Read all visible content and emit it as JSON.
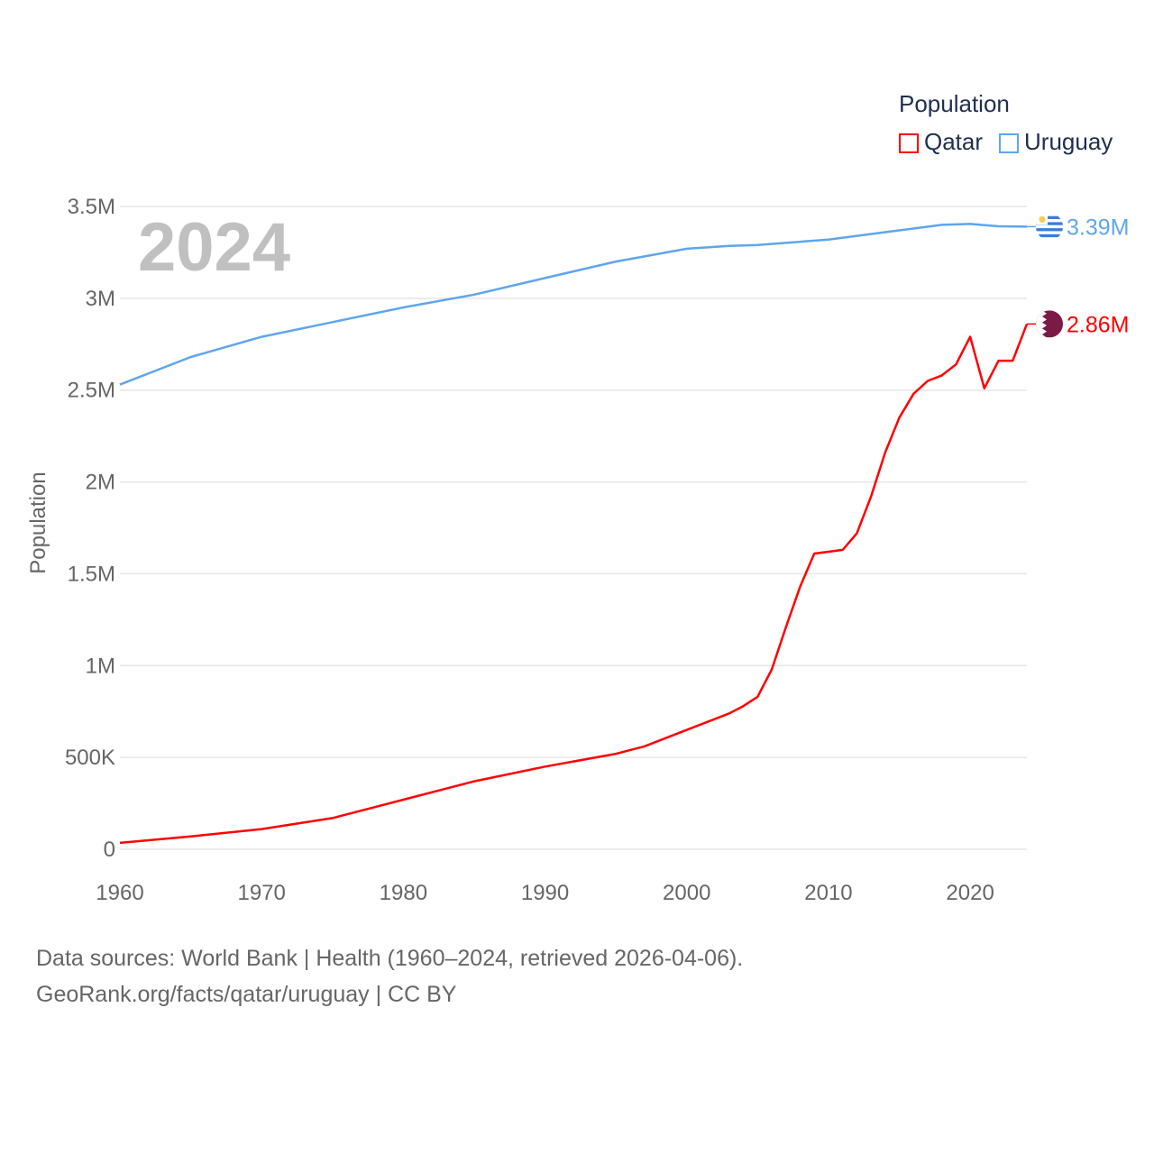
{
  "chart_data": {
    "type": "line",
    "title": "Population",
    "year_label": "2024",
    "xlabel": "",
    "ylabel": "Population",
    "xlim": [
      1960,
      2024
    ],
    "ylim": [
      0,
      3500000
    ],
    "x_ticks": [
      "1960",
      "1970",
      "1980",
      "1990",
      "2000",
      "2010",
      "2020"
    ],
    "y_ticks": [
      {
        "v": 0,
        "label": "0"
      },
      {
        "v": 500000,
        "label": "500K"
      },
      {
        "v": 1000000,
        "label": "1M"
      },
      {
        "v": 1500000,
        "label": "1.5M"
      },
      {
        "v": 2000000,
        "label": "2M"
      },
      {
        "v": 2500000,
        "label": "2.5M"
      },
      {
        "v": 3000000,
        "label": "3M"
      },
      {
        "v": 3500000,
        "label": "3.5M"
      }
    ],
    "grid": true,
    "legend_placement": "top-right",
    "series": [
      {
        "name": "Qatar",
        "color": "#ff0000",
        "end_label": "2.86M",
        "flag": "qatar-flag",
        "x": [
          1960,
          1965,
          1970,
          1975,
          1980,
          1985,
          1990,
          1995,
          1997,
          2000,
          2003,
          2004,
          2005,
          2006,
          2007,
          2008,
          2009,
          2010,
          2011,
          2012,
          2013,
          2014,
          2015,
          2016,
          2017,
          2018,
          2019,
          2020,
          2021,
          2022,
          2023,
          2024
        ],
        "y": [
          35000,
          70000,
          110000,
          170000,
          270000,
          370000,
          450000,
          520000,
          560000,
          650000,
          740000,
          780000,
          830000,
          980000,
          1210000,
          1430000,
          1610000,
          1620000,
          1630000,
          1720000,
          1920000,
          2160000,
          2350000,
          2480000,
          2550000,
          2580000,
          2640000,
          2790000,
          2510000,
          2660000,
          2660000,
          2860000
        ]
      },
      {
        "name": "Uruguay",
        "color": "#5fa6ec",
        "end_label": "3.39M",
        "flag": "uruguay-flag",
        "x": [
          1960,
          1965,
          1970,
          1975,
          1980,
          1985,
          1990,
          1995,
          2000,
          2003,
          2005,
          2010,
          2015,
          2018,
          2020,
          2022,
          2024
        ],
        "y": [
          2530000,
          2680000,
          2790000,
          2870000,
          2950000,
          3020000,
          3110000,
          3200000,
          3270000,
          3285000,
          3290000,
          3320000,
          3370000,
          3400000,
          3405000,
          3392000,
          3390000
        ]
      }
    ]
  },
  "legend": {
    "title": "Population",
    "items": [
      "Qatar",
      "Uruguay"
    ]
  },
  "footer": {
    "line1": "Data sources: World Bank | Health (1960–2024, retrieved 2026-04-06).",
    "line2": "GeoRank.org/facts/qatar/uruguay | CC BY"
  }
}
